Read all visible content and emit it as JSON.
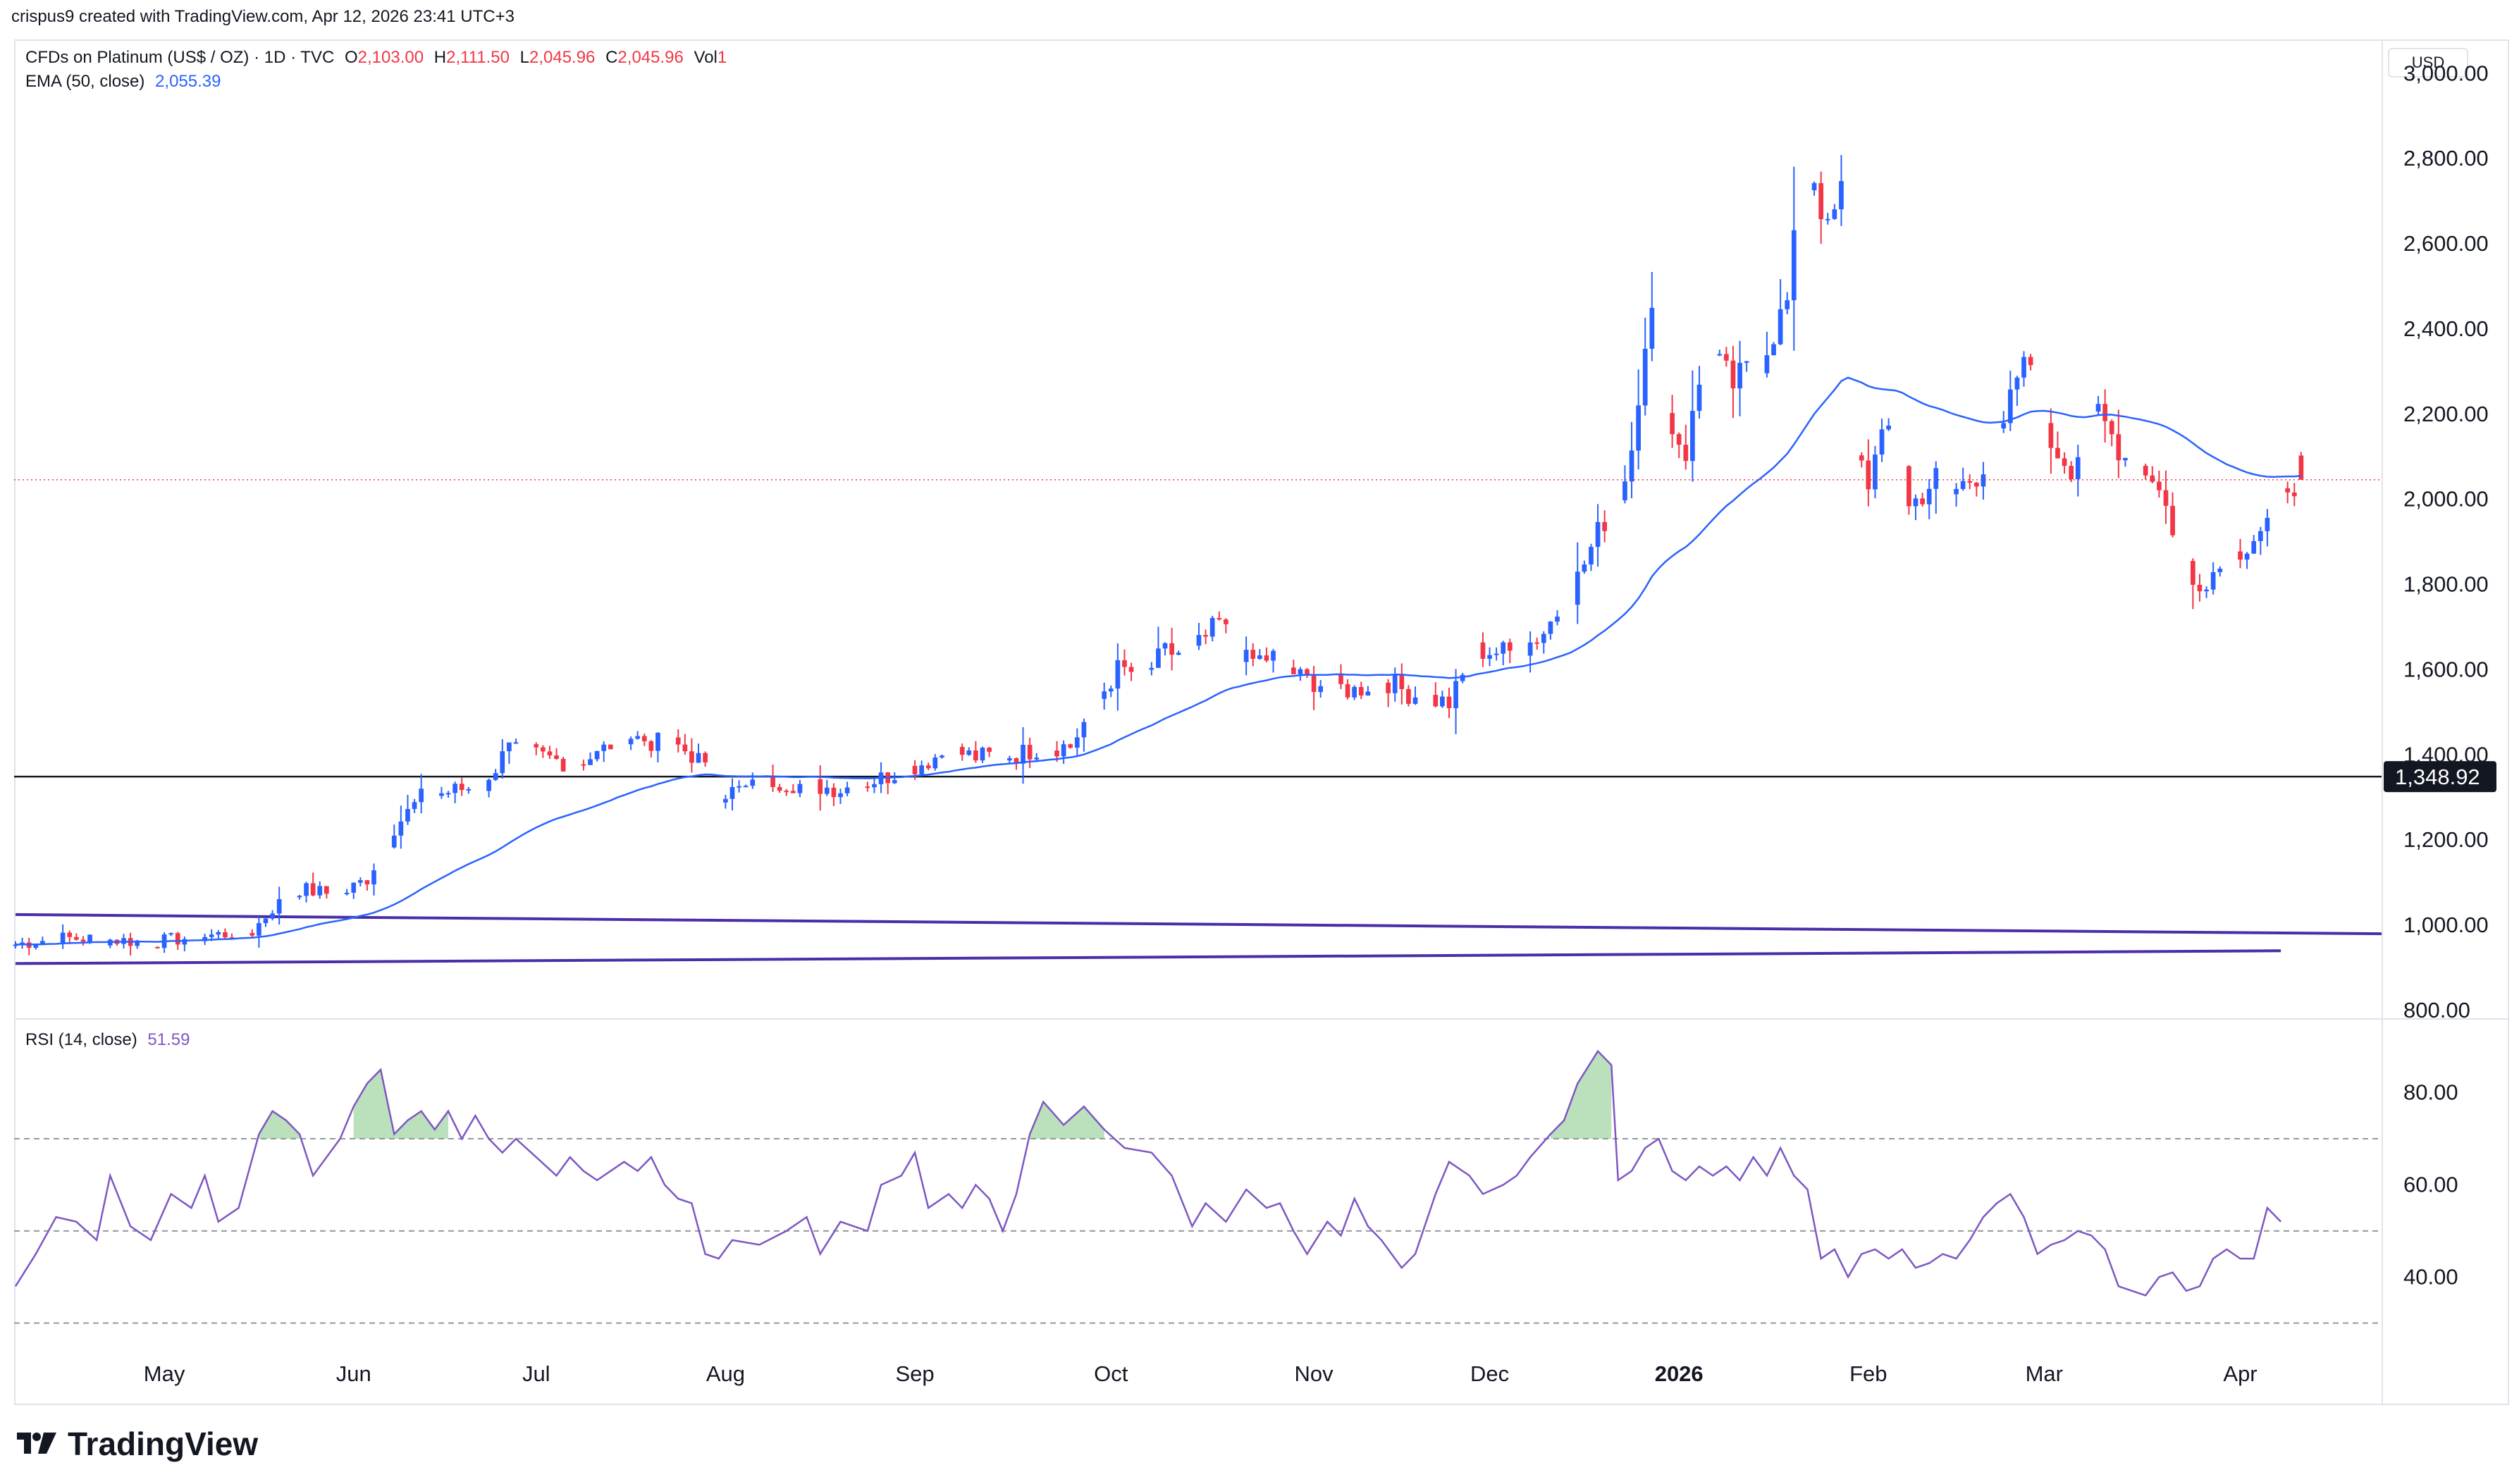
{
  "header": {
    "created_by": "crispus9 created with TradingView.com, Apr 12, 2026 23:41 UTC+3"
  },
  "legend": {
    "symbol": "CFDs on Platinum (US$ / OZ) · 1D · TVC",
    "o_label": "O",
    "o_value": "2,103.00",
    "h_label": "H",
    "h_value": "2,111.50",
    "l_label": "L",
    "l_value": "2,045.96",
    "c_label": "C",
    "c_value": "2,045.96",
    "vol_label": "Vol",
    "vol_value": "1",
    "ema_label": "EMA (50, close)",
    "ema_value": "2,055.39",
    "rsi_label": "RSI (14, close)",
    "rsi_value": "51.59"
  },
  "currency_button": "USD",
  "brand": {
    "name": "TradingView",
    "logo_text": "17"
  },
  "colors": {
    "up": "#2962ff",
    "down": "#f23645",
    "ema": "#2962ff",
    "rsi": "#7e57c2",
    "trendline": "#4a2ea8",
    "rsi_fill": "#66bb6a",
    "support": "#131722"
  },
  "chart_data": [
    {
      "type": "candlestick",
      "title": "CFDs on Platinum (US$ / OZ) · 1D · TVC",
      "ylabel": "USD",
      "ylim": [
        780,
        3080
      ],
      "yticks": [
        800,
        1000,
        1200,
        1400,
        1600,
        1800,
        2000,
        2200,
        2400,
        2600,
        2800,
        3000
      ],
      "ytick_labels": [
        "800.00",
        "1,000.00",
        "1,200.00",
        "1,400.00",
        "1,600.00",
        "1,800.00",
        "2,000.00",
        "2,200.00",
        "2,400.00",
        "2,600.00",
        "2,800.00",
        "3,000.00"
      ],
      "x_labels": [
        "May",
        "Jun",
        "Jul",
        "Aug",
        "Sep",
        "Oct",
        "Nov",
        "Dec",
        "2026",
        "Feb",
        "Mar",
        "Apr"
      ],
      "x_label_days": [
        22,
        50,
        77,
        105,
        133,
        162,
        192,
        218,
        246,
        274,
        300,
        329
      ],
      "x_range_days": [
        0,
        350
      ],
      "support_level": 1348.92,
      "support_label": "1,348.92",
      "current_price": 2045.96,
      "trendlines": [
        {
          "name": "upper",
          "from": [
            0,
            1025
          ],
          "to": [
            350,
            980
          ]
        },
        {
          "name": "lower",
          "from": [
            0,
            910
          ],
          "to": [
            335,
            940
          ]
        }
      ],
      "anchor_closes": [
        [
          0,
          955
        ],
        [
          6,
          970
        ],
        [
          12,
          968
        ],
        [
          20,
          960
        ],
        [
          28,
          975
        ],
        [
          35,
          985
        ],
        [
          38,
          1040
        ],
        [
          42,
          1085
        ],
        [
          48,
          1070
        ],
        [
          52,
          1110
        ],
        [
          56,
          1230
        ],
        [
          60,
          1300
        ],
        [
          66,
          1320
        ],
        [
          70,
          1330
        ],
        [
          72,
          1420
        ],
        [
          77,
          1400
        ],
        [
          82,
          1380
        ],
        [
          86,
          1400
        ],
        [
          90,
          1450
        ],
        [
          94,
          1430
        ],
        [
          98,
          1420
        ],
        [
          101,
          1390
        ],
        [
          104,
          1310
        ],
        [
          108,
          1320
        ],
        [
          112,
          1340
        ],
        [
          116,
          1330
        ],
        [
          122,
          1320
        ],
        [
          128,
          1345
        ],
        [
          134,
          1380
        ],
        [
          138,
          1410
        ],
        [
          142,
          1395
        ],
        [
          148,
          1400
        ],
        [
          152,
          1420
        ],
        [
          156,
          1420
        ],
        [
          160,
          1530
        ],
        [
          163,
          1600
        ],
        [
          167,
          1590
        ],
        [
          170,
          1640
        ],
        [
          174,
          1640
        ],
        [
          178,
          1710
        ],
        [
          182,
          1620
        ],
        [
          186,
          1630
        ],
        [
          190,
          1580
        ],
        [
          194,
          1565
        ],
        [
          198,
          1550
        ],
        [
          202,
          1580
        ],
        [
          206,
          1545
        ],
        [
          212,
          1520
        ],
        [
          216,
          1645
        ],
        [
          222,
          1640
        ],
        [
          226,
          1690
        ],
        [
          230,
          1780
        ],
        [
          234,
          1920
        ],
        [
          238,
          2050
        ],
        [
          240,
          2250
        ],
        [
          242,
          2420
        ],
        [
          244,
          2200
        ],
        [
          247,
          2110
        ],
        [
          250,
          2350
        ],
        [
          254,
          2270
        ],
        [
          258,
          2330
        ],
        [
          262,
          2460
        ],
        [
          264,
          2720
        ],
        [
          266,
          2760
        ],
        [
          268,
          2620
        ],
        [
          270,
          2720
        ],
        [
          272,
          2120
        ],
        [
          274,
          2050
        ],
        [
          276,
          2130
        ],
        [
          278,
          2200
        ],
        [
          280,
          1980
        ],
        [
          284,
          2050
        ],
        [
          286,
          2010
        ],
        [
          290,
          2060
        ],
        [
          294,
          2160
        ],
        [
          296,
          2290
        ],
        [
          298,
          2320
        ],
        [
          300,
          2150
        ],
        [
          304,
          2080
        ],
        [
          308,
          2200
        ],
        [
          312,
          2100
        ],
        [
          316,
          2060
        ],
        [
          318,
          1980
        ],
        [
          322,
          1800
        ],
        [
          326,
          1840
        ],
        [
          330,
          1900
        ],
        [
          334,
          1960
        ],
        [
          336,
          2040
        ],
        [
          338,
          2046
        ]
      ],
      "ema_period": 50,
      "ema_last": 2055.39,
      "last_candle": {
        "open": 2103.0,
        "high": 2111.5,
        "low": 2045.96,
        "close": 2045.96
      }
    },
    {
      "type": "line",
      "title": "RSI (14, close)",
      "ylim": [
        22,
        96
      ],
      "yticks": [
        40,
        60,
        80
      ],
      "ytick_labels": [
        "40.00",
        "60.00",
        "80.00"
      ],
      "levels": [
        30,
        50,
        70
      ],
      "overbought": 70,
      "x_range_days": [
        0,
        350
      ],
      "points": [
        [
          0,
          38
        ],
        [
          3,
          45
        ],
        [
          6,
          53
        ],
        [
          9,
          52
        ],
        [
          12,
          48
        ],
        [
          14,
          62
        ],
        [
          17,
          51
        ],
        [
          20,
          48
        ],
        [
          23,
          58
        ],
        [
          26,
          55
        ],
        [
          28,
          62
        ],
        [
          30,
          52
        ],
        [
          33,
          55
        ],
        [
          36,
          71
        ],
        [
          38,
          76
        ],
        [
          40,
          74
        ],
        [
          42,
          71
        ],
        [
          44,
          62
        ],
        [
          46,
          66
        ],
        [
          48,
          70
        ],
        [
          50,
          77
        ],
        [
          52,
          82
        ],
        [
          54,
          85
        ],
        [
          56,
          71
        ],
        [
          58,
          74
        ],
        [
          60,
          76
        ],
        [
          62,
          72
        ],
        [
          64,
          76
        ],
        [
          66,
          70
        ],
        [
          68,
          75
        ],
        [
          70,
          70
        ],
        [
          72,
          67
        ],
        [
          74,
          70
        ],
        [
          77,
          66
        ],
        [
          80,
          62
        ],
        [
          82,
          66
        ],
        [
          84,
          63
        ],
        [
          86,
          61
        ],
        [
          88,
          63
        ],
        [
          90,
          65
        ],
        [
          92,
          63
        ],
        [
          94,
          66
        ],
        [
          96,
          60
        ],
        [
          98,
          57
        ],
        [
          100,
          56
        ],
        [
          102,
          45
        ],
        [
          104,
          44
        ],
        [
          106,
          48
        ],
        [
          110,
          47
        ],
        [
          114,
          50
        ],
        [
          117,
          53
        ],
        [
          119,
          45
        ],
        [
          122,
          52
        ],
        [
          126,
          50
        ],
        [
          128,
          60
        ],
        [
          131,
          62
        ],
        [
          133,
          67
        ],
        [
          135,
          55
        ],
        [
          138,
          58
        ],
        [
          140,
          55
        ],
        [
          142,
          60
        ],
        [
          144,
          57
        ],
        [
          146,
          50
        ],
        [
          148,
          58
        ],
        [
          150,
          71
        ],
        [
          152,
          78
        ],
        [
          155,
          73
        ],
        [
          158,
          77
        ],
        [
          161,
          72
        ],
        [
          164,
          68
        ],
        [
          168,
          67
        ],
        [
          171,
          62
        ],
        [
          174,
          51
        ],
        [
          176,
          56
        ],
        [
          179,
          52
        ],
        [
          182,
          59
        ],
        [
          185,
          55
        ],
        [
          187,
          56
        ],
        [
          189,
          50
        ],
        [
          191,
          45
        ],
        [
          194,
          52
        ],
        [
          196,
          49
        ],
        [
          198,
          57
        ],
        [
          200,
          51
        ],
        [
          202,
          48
        ],
        [
          205,
          42
        ],
        [
          207,
          45
        ],
        [
          210,
          58
        ],
        [
          212,
          65
        ],
        [
          215,
          62
        ],
        [
          217,
          58
        ],
        [
          220,
          60
        ],
        [
          222,
          62
        ],
        [
          224,
          66
        ],
        [
          227,
          71
        ],
        [
          229,
          74
        ],
        [
          231,
          82
        ],
        [
          234,
          89
        ],
        [
          236,
          86
        ],
        [
          237,
          61
        ],
        [
          239,
          63
        ],
        [
          241,
          68
        ],
        [
          243,
          70
        ],
        [
          245,
          63
        ],
        [
          247,
          61
        ],
        [
          249,
          64
        ],
        [
          251,
          62
        ],
        [
          253,
          64
        ],
        [
          255,
          61
        ],
        [
          257,
          66
        ],
        [
          259,
          62
        ],
        [
          261,
          68
        ],
        [
          263,
          62
        ],
        [
          265,
          59
        ],
        [
          267,
          44
        ],
        [
          269,
          46
        ],
        [
          271,
          40
        ],
        [
          273,
          45
        ],
        [
          275,
          46
        ],
        [
          277,
          44
        ],
        [
          279,
          46
        ],
        [
          281,
          42
        ],
        [
          283,
          43
        ],
        [
          285,
          45
        ],
        [
          287,
          44
        ],
        [
          289,
          48
        ],
        [
          291,
          53
        ],
        [
          293,
          56
        ],
        [
          295,
          58
        ],
        [
          297,
          53
        ],
        [
          299,
          45
        ],
        [
          301,
          47
        ],
        [
          303,
          48
        ],
        [
          305,
          50
        ],
        [
          307,
          49
        ],
        [
          309,
          46
        ],
        [
          311,
          38
        ],
        [
          313,
          37
        ],
        [
          315,
          36
        ],
        [
          317,
          40
        ],
        [
          319,
          41
        ],
        [
          321,
          37
        ],
        [
          323,
          38
        ],
        [
          325,
          44
        ],
        [
          327,
          46
        ],
        [
          329,
          44
        ],
        [
          331,
          44
        ],
        [
          333,
          55
        ],
        [
          335,
          52
        ]
      ]
    }
  ]
}
